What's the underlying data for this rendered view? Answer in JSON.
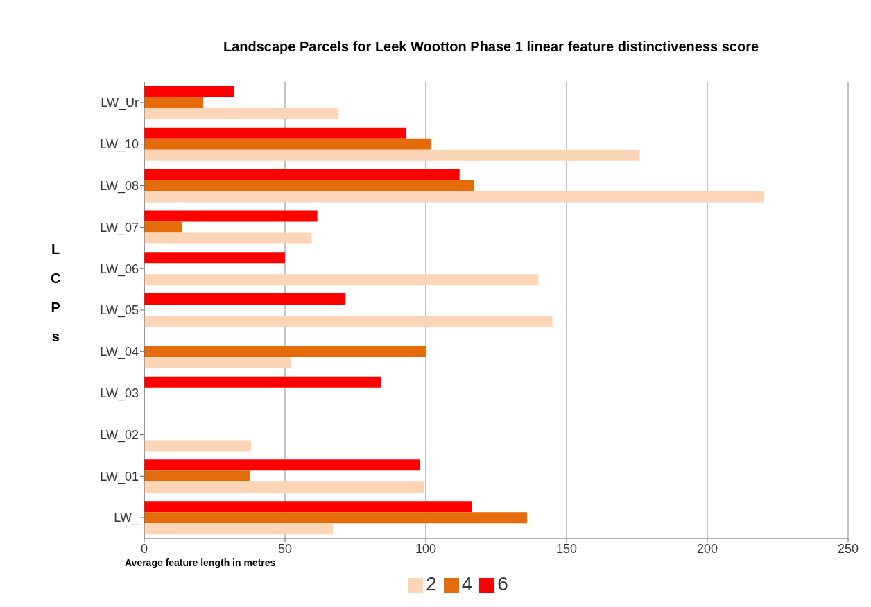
{
  "chart_data": {
    "type": "bar",
    "orientation": "horizontal",
    "title": "Landscape Parcels for  Leek Wootton Phase 1 linear feature  distinctiveness score",
    "xlabel": "Average feature  length in metres",
    "ylabel": "LCPs",
    "categories": [
      "LW_Ur",
      "LW_10",
      "LW_08",
      "LW_07",
      "LW_06",
      "LW_05",
      "LW_04",
      "LW_03",
      "LW_02",
      "LW_01",
      "LW_"
    ],
    "series": [
      {
        "name": "6",
        "color": "#ff0000",
        "values": [
          32,
          93,
          112,
          61.5,
          50,
          71.5,
          null,
          84,
          null,
          98,
          116.5
        ]
      },
      {
        "name": "4",
        "color": "#e46c0a",
        "values": [
          21,
          102,
          117,
          13.5,
          null,
          null,
          100,
          null,
          null,
          37.5,
          136
        ]
      },
      {
        "name": "2",
        "color": "#fbd5b5",
        "values": [
          69,
          176,
          220,
          59.5,
          140,
          145,
          52,
          null,
          38,
          99.5,
          67
        ]
      }
    ],
    "xlim": [
      0,
      250
    ],
    "xticks": [
      0,
      50,
      100,
      150,
      200,
      250
    ],
    "grid": "x",
    "legend": "bottom"
  }
}
